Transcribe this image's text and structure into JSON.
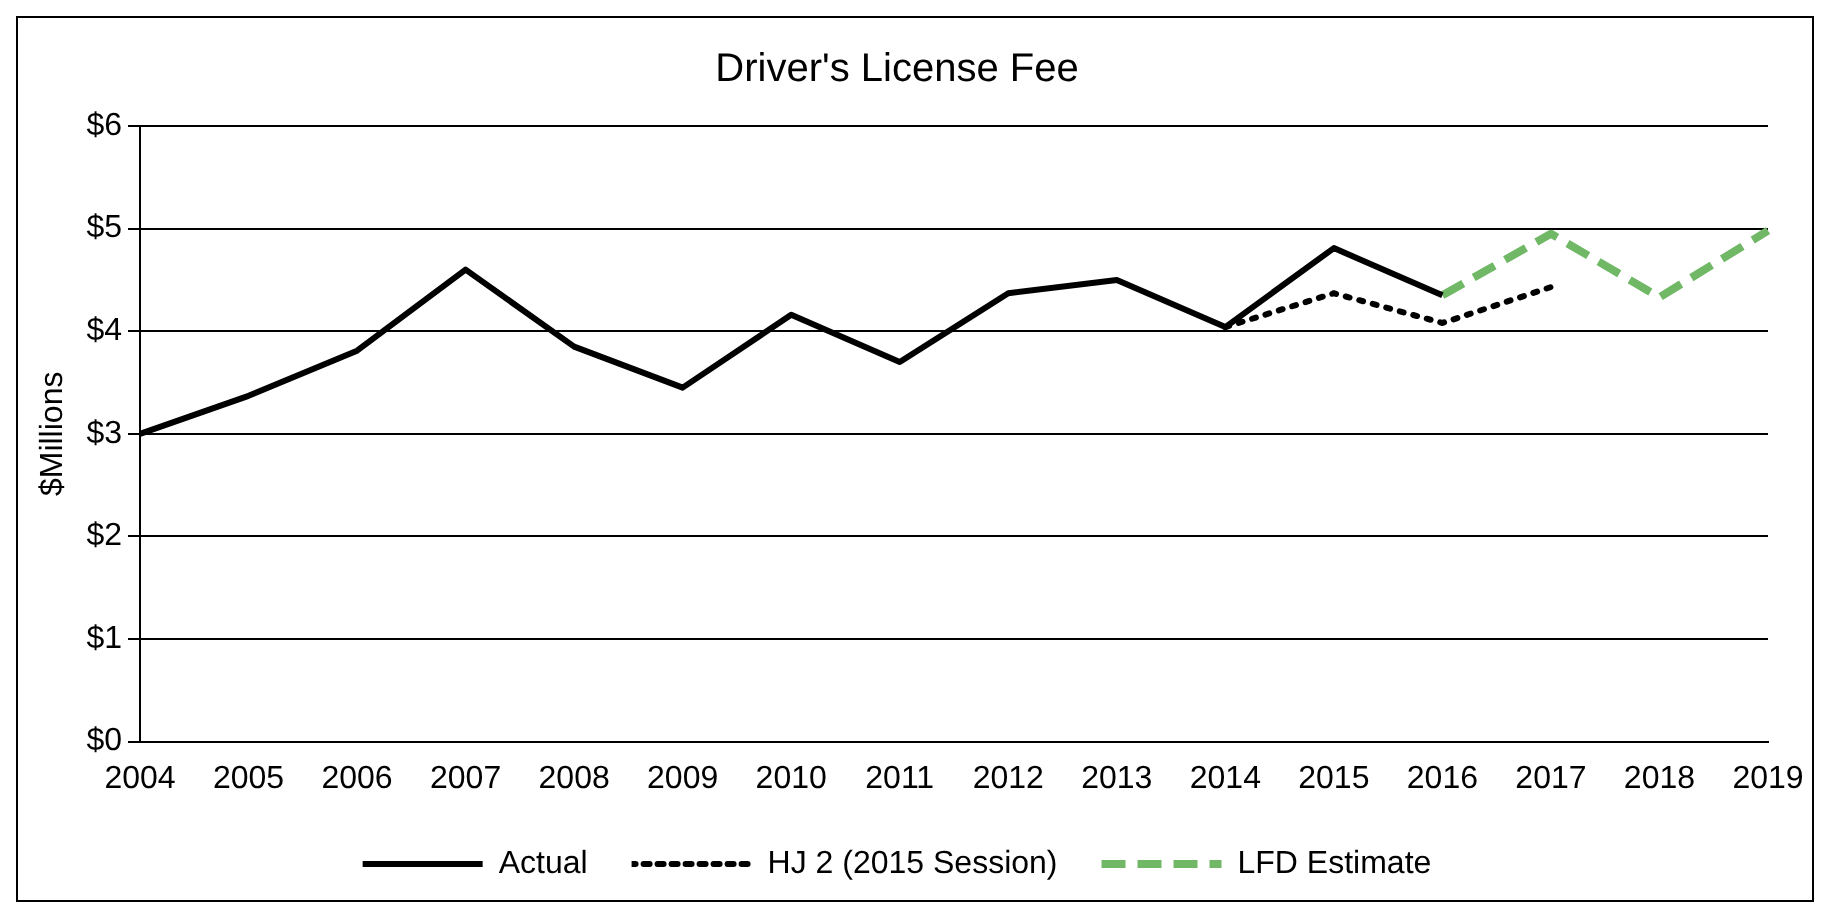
{
  "chart_data": {
    "type": "line",
    "title": "Driver's License Fee",
    "ylabel": "$Millions",
    "categories": [
      "2004",
      "2005",
      "2006",
      "2007",
      "2008",
      "2009",
      "2010",
      "2011",
      "2012",
      "2013",
      "2014",
      "2015",
      "2016",
      "2017",
      "2018",
      "2019"
    ],
    "series": [
      {
        "name": "Actual",
        "color": "#000000",
        "line_style": "solid",
        "values": [
          3.0,
          3.37,
          3.81,
          4.6,
          3.85,
          3.45,
          4.16,
          3.7,
          4.37,
          4.5,
          4.04,
          4.81,
          4.35,
          null,
          null,
          null
        ]
      },
      {
        "name": "HJ 2 (2015 Session)",
        "color": "#000000",
        "line_style": "dotted",
        "values": [
          null,
          null,
          null,
          null,
          null,
          null,
          null,
          null,
          null,
          null,
          4.04,
          4.37,
          4.08,
          4.43,
          null,
          null
        ]
      },
      {
        "name": "LFD Estimate",
        "color": "#70b866",
        "line_style": "dashed",
        "values": [
          null,
          null,
          null,
          null,
          null,
          null,
          null,
          null,
          null,
          null,
          null,
          null,
          4.35,
          4.95,
          4.33,
          4.98
        ]
      }
    ],
    "ylim": [
      0,
      6
    ],
    "yticks": [
      {
        "value": 0,
        "label": "$0"
      },
      {
        "value": 1,
        "label": "$1"
      },
      {
        "value": 2,
        "label": "$2"
      },
      {
        "value": 3,
        "label": "$3"
      },
      {
        "value": 4,
        "label": "$4"
      },
      {
        "value": 5,
        "label": "$5"
      },
      {
        "value": 6,
        "label": "$6"
      }
    ],
    "grid": "y",
    "legend": "bottom",
    "marker": "none"
  }
}
